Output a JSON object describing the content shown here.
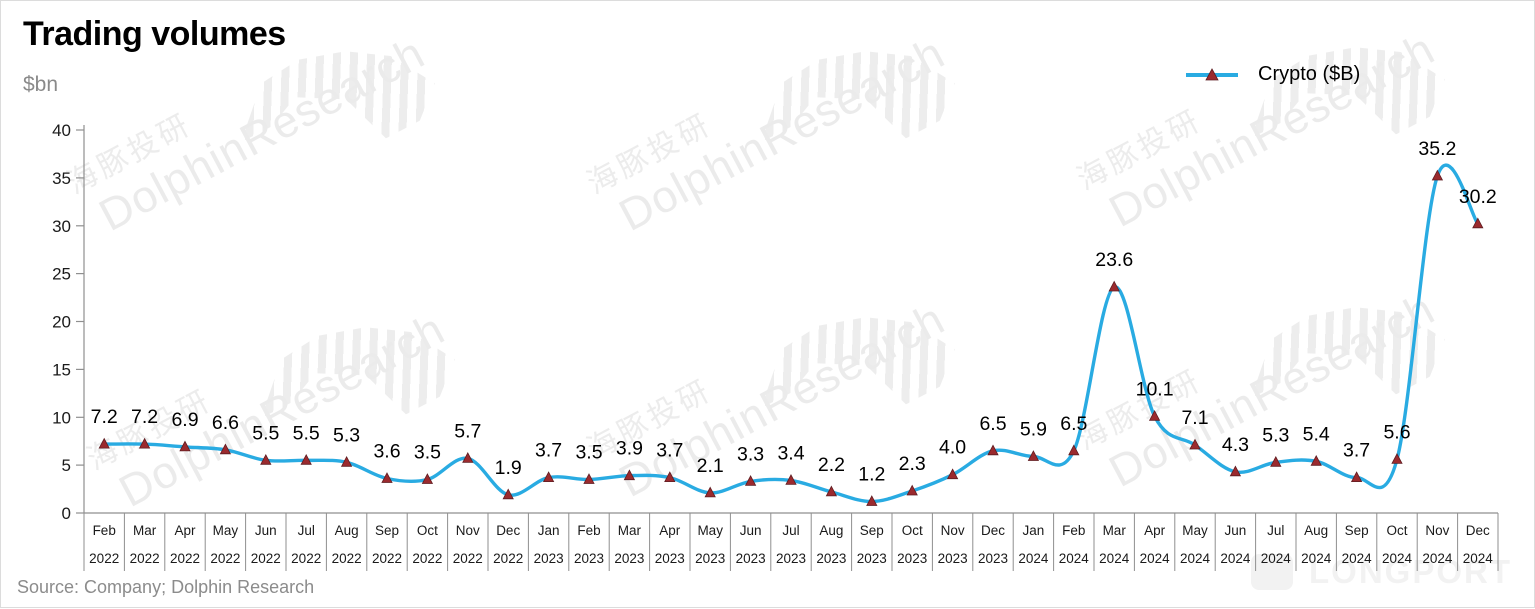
{
  "header": {
    "title": "Trading volumes",
    "unit_label": "$bn"
  },
  "legend": {
    "series_label": "Crypto ($B)"
  },
  "source_note": "Source: Company; Dolphin Research",
  "watermark": {
    "cn": "海豚投研",
    "en": "DolphinResearch",
    "brand": "LONGPORT"
  },
  "chart_data": {
    "type": "line",
    "title": "Trading volumes",
    "ylabel": "$bn",
    "categories": [
      "Feb 2022",
      "Mar 2022",
      "Apr 2022",
      "May 2022",
      "Jun 2022",
      "Jul 2022",
      "Aug 2022",
      "Sep 2022",
      "Oct 2022",
      "Nov 2022",
      "Dec 2022",
      "Jan 2023",
      "Feb 2023",
      "Mar 2023",
      "Apr 2023",
      "May 2023",
      "Jun 2023",
      "Jul 2023",
      "Aug 2023",
      "Sep 2023",
      "Oct 2023",
      "Nov 2023",
      "Dec 2023",
      "Jan 2024",
      "Feb 2024",
      "Mar 2024",
      "Apr 2024",
      "May 2024",
      "Jun 2024",
      "Jul 2024",
      "Aug 2024",
      "Sep 2024",
      "Oct 2024",
      "Nov 2024",
      "Dec 2024"
    ],
    "series": [
      {
        "name": "Crypto ($B)",
        "values": [
          7.2,
          7.2,
          6.9,
          6.6,
          5.5,
          5.5,
          5.3,
          3.6,
          3.5,
          5.7,
          1.9,
          3.7,
          3.5,
          3.9,
          3.7,
          2.1,
          3.3,
          3.4,
          2.2,
          1.2,
          2.3,
          4.0,
          6.5,
          5.9,
          6.5,
          23.6,
          10.1,
          7.1,
          4.3,
          5.3,
          5.4,
          3.7,
          5.6,
          35.2,
          30.2
        ]
      }
    ],
    "ylim": [
      0,
      40
    ],
    "yticks": [
      0,
      5,
      10,
      15,
      20,
      25,
      30,
      35,
      40
    ],
    "grid": false,
    "smooth": true,
    "data_labels": true,
    "legend_position": "top-right",
    "colors": {
      "line": "#29abe2",
      "marker_fill": "#9b2a2e",
      "marker_stroke": "#5e1d22",
      "axis": "#8f8f8f",
      "tick_label": "#1a1a1a",
      "data_label": "#000000"
    }
  }
}
